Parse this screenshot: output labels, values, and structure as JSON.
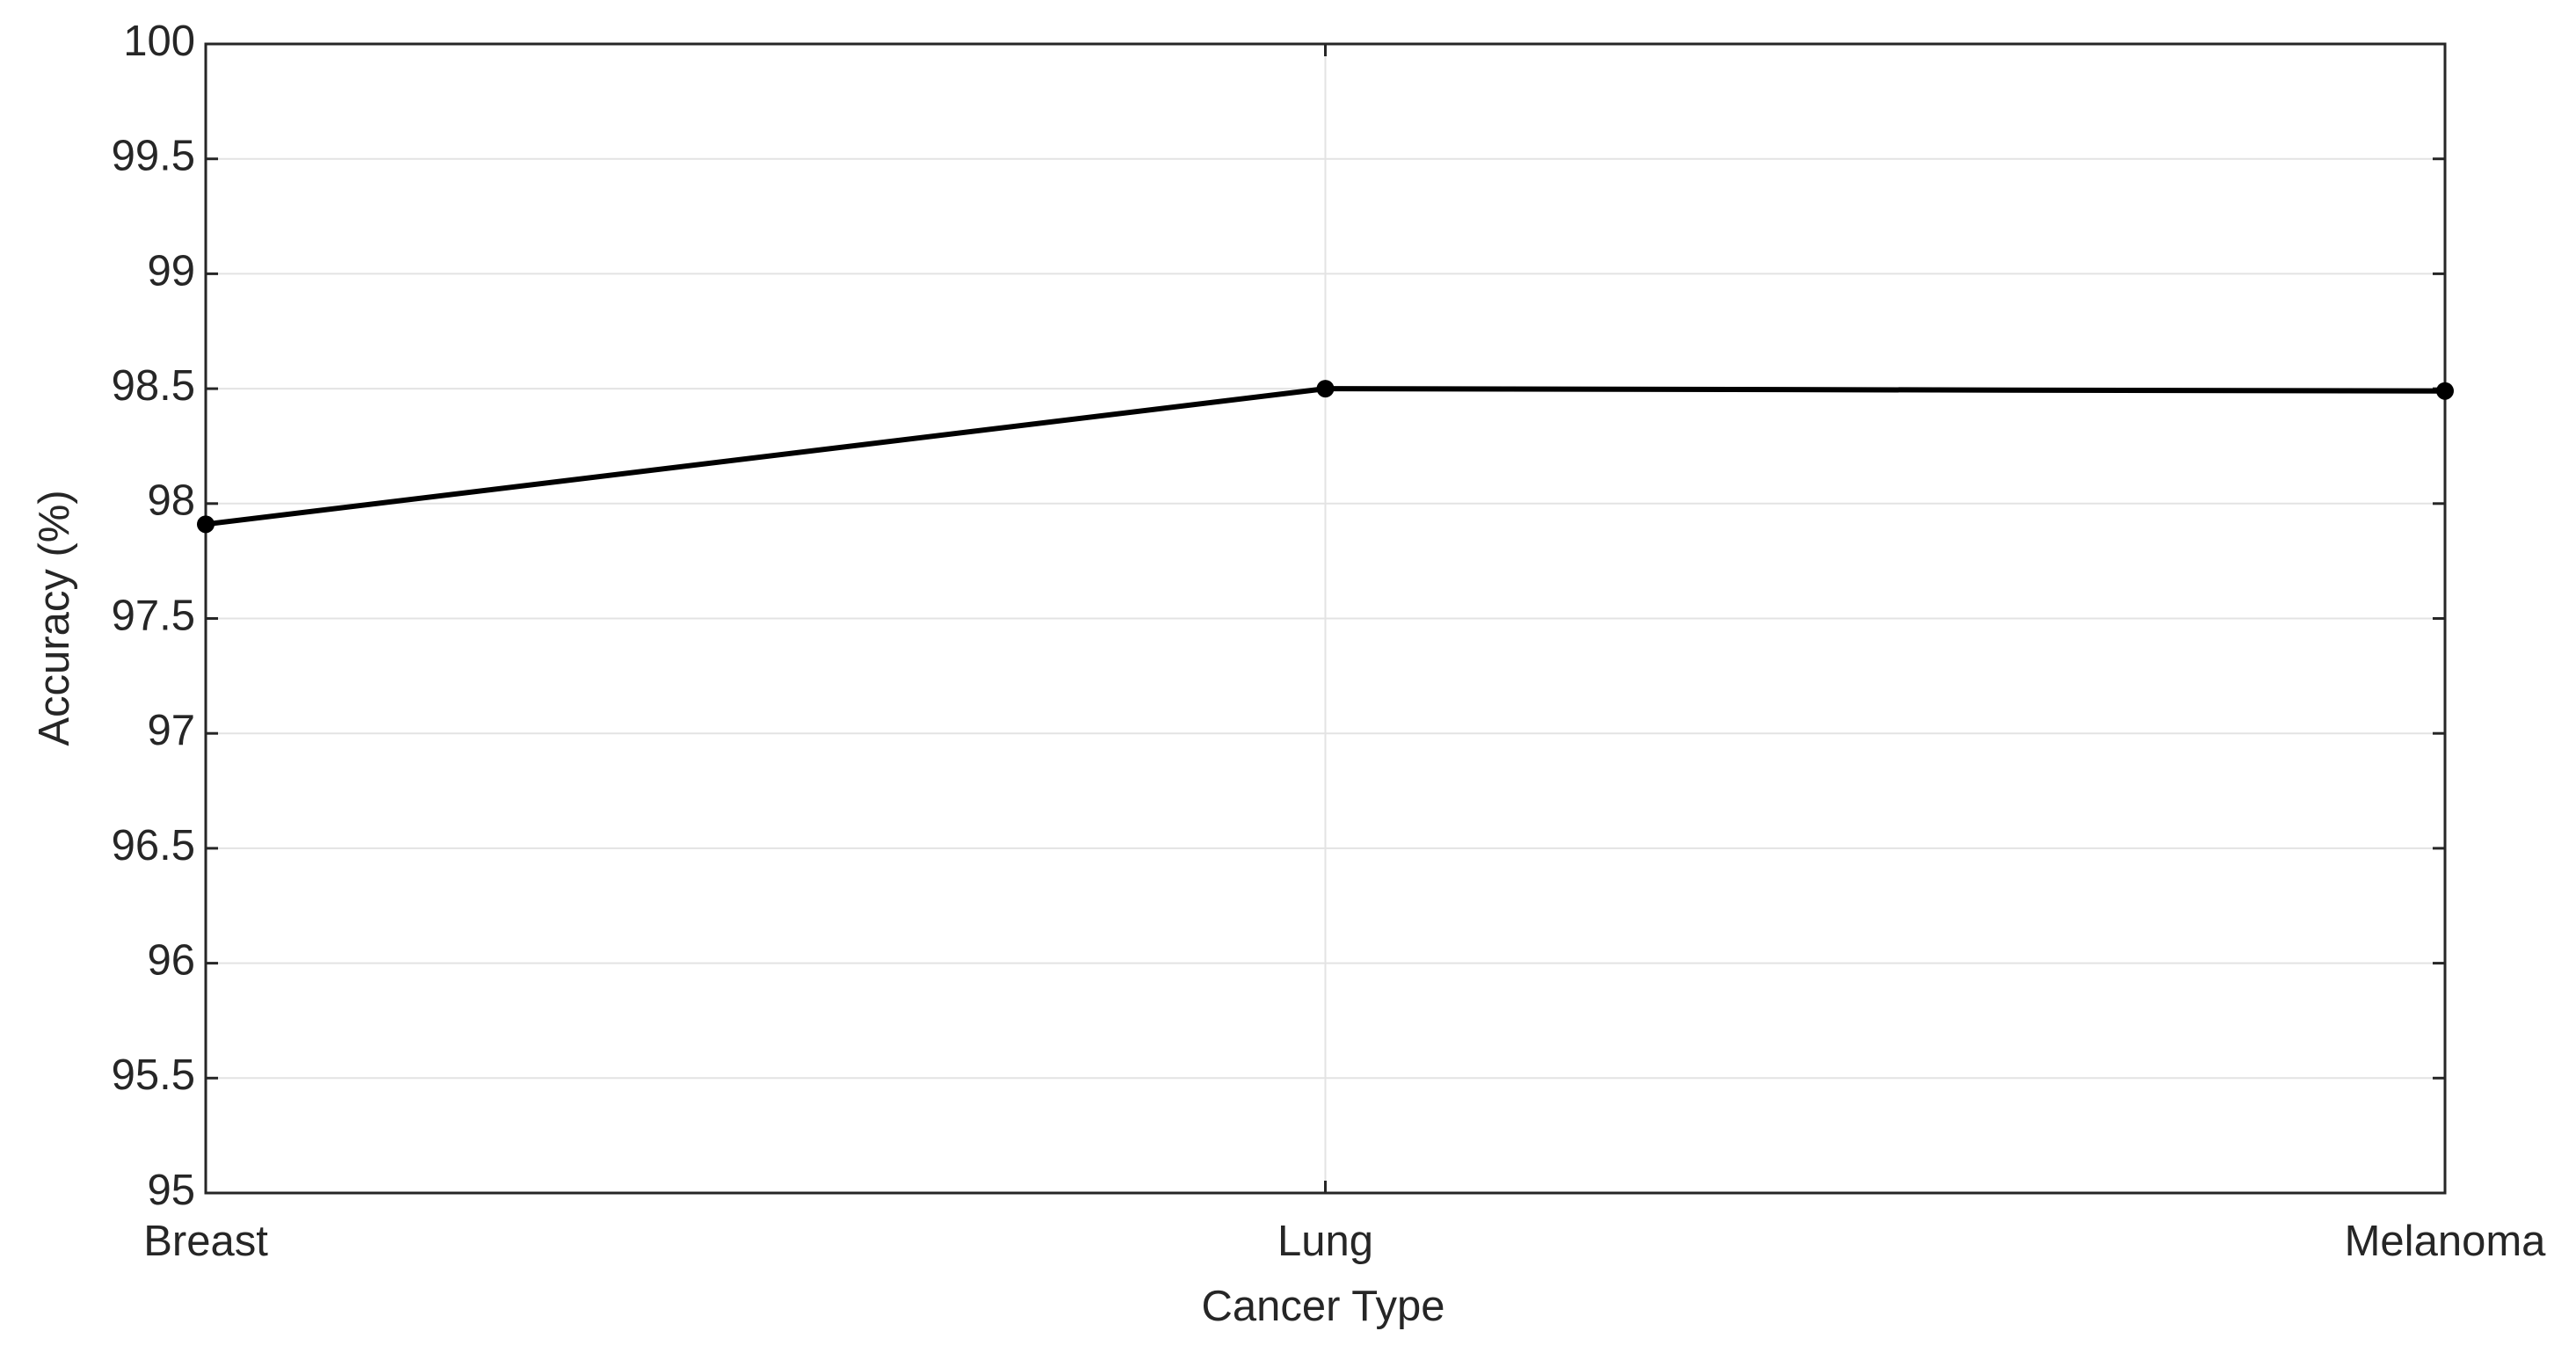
{
  "chart_data": {
    "type": "line",
    "x_label": "Cancer Type",
    "y_label": "Accuracy (%)",
    "categories": [
      "Breast",
      "Lung",
      "Melanoma"
    ],
    "series": [
      {
        "color": "#000000",
        "values": [
          97.91,
          98.5,
          98.49
        ]
      }
    ],
    "ylim": [
      95,
      100
    ],
    "yticks": [
      95,
      95.5,
      96,
      96.5,
      97,
      97.5,
      98,
      98.5,
      99,
      99.5,
      100
    ],
    "grid": true
  }
}
